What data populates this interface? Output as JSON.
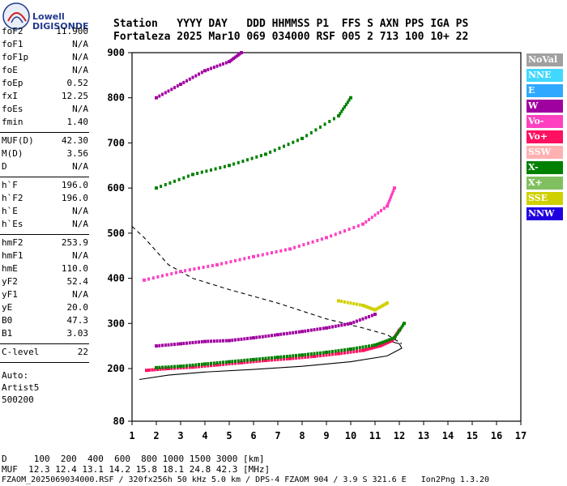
{
  "logo": {
    "line1": "Lowell",
    "line2": "DIGISONDE"
  },
  "header": {
    "row1": "Station   YYYY DAY   DDD HHMMSS P1  FFS S AXN PPS IGA PS",
    "row2": "Fortaleza 2025 Mar10 069 034000 RSF 005 2 713 100 10+ 22"
  },
  "params_group1": [
    {
      "k": "foF2",
      "v": "11.900"
    },
    {
      "k": "foF1",
      "v": "N/A"
    },
    {
      "k": "foF1p",
      "v": "N/A"
    },
    {
      "k": "foE",
      "v": "N/A"
    },
    {
      "k": "foEp",
      "v": "0.52"
    },
    {
      "k": "fxI",
      "v": "12.25"
    },
    {
      "k": "foEs",
      "v": "N/A"
    },
    {
      "k": "fmin",
      "v": "1.40"
    }
  ],
  "params_group2": [
    {
      "k": "MUF(D)",
      "v": "42.30"
    },
    {
      "k": "M(D)",
      "v": "3.56"
    },
    {
      "k": "D",
      "v": "N/A"
    }
  ],
  "params_group3": [
    {
      "k": "h`F",
      "v": "196.0"
    },
    {
      "k": "h`F2",
      "v": "196.0"
    },
    {
      "k": "h`E",
      "v": "N/A"
    },
    {
      "k": "h`Es",
      "v": "N/A"
    }
  ],
  "params_group4": [
    {
      "k": "hmF2",
      "v": "253.9"
    },
    {
      "k": "hmF1",
      "v": "N/A"
    },
    {
      "k": "hmE",
      "v": "110.0"
    },
    {
      "k": "yF2",
      "v": "52.4"
    },
    {
      "k": "yF1",
      "v": "N/A"
    },
    {
      "k": "yE",
      "v": "20.0"
    },
    {
      "k": "B0",
      "v": "47.3"
    },
    {
      "k": "B1",
      "v": "3.03"
    }
  ],
  "params_group5": [
    {
      "k": "C-level",
      "v": "22"
    }
  ],
  "auto": {
    "line1": "Auto:",
    "line2": "Artist5",
    "line3": "500200"
  },
  "legend": [
    {
      "label": "NoVal",
      "color": "#a0a0a0"
    },
    {
      "label": "NNE",
      "color": "#40d8ff"
    },
    {
      "label": "E",
      "color": "#2fa8ff"
    },
    {
      "label": "W",
      "color": "#a000a0"
    },
    {
      "label": "Vo-",
      "color": "#ff40c0"
    },
    {
      "label": "Vo+",
      "color": "#ff1060"
    },
    {
      "label": "SSW",
      "color": "#ffb0b0"
    },
    {
      "label": "X-",
      "color": "#008000"
    },
    {
      "label": "X+",
      "color": "#80c060"
    },
    {
      "label": "SSE",
      "color": "#d0d000"
    },
    {
      "label": "NNW",
      "color": "#2000e0"
    }
  ],
  "footer": {
    "row1": "D     100  200  400  600  800 1000 1500 3000 [km]",
    "row2": "MUF  12.3 12.4 13.1 14.2 15.8 18.1 24.8 42.3 [MHz]",
    "row3": "FZAOM_2025069034000.RSF / 320fx256h 50 kHz 5.0 km / DPS-4 FZAOM 904 / 3.9 S 321.6 E   Ion2Png 1.3.20"
  },
  "chart_data": {
    "type": "scatter",
    "title": "",
    "xlabel": "",
    "ylabel": "",
    "xlim": [
      1,
      17
    ],
    "ylim": [
      80,
      900
    ],
    "x_ticks": [
      "1",
      "2",
      "3",
      "4",
      "5",
      "6",
      "7",
      "8",
      "9",
      "10",
      "11",
      "12",
      "13",
      "14",
      "15",
      "16",
      "17"
    ],
    "y_ticks": [
      "80",
      "200",
      "300",
      "400",
      "500",
      "600",
      "700",
      "800",
      "900"
    ],
    "series": [
      {
        "name": "Vo+",
        "values": [
          [
            1.6,
            196
          ],
          [
            2.5,
            200
          ],
          [
            3.5,
            203
          ],
          [
            4.5,
            208
          ],
          [
            5.5,
            213
          ],
          [
            6.5,
            218
          ],
          [
            7.5,
            222
          ],
          [
            8.5,
            227
          ],
          [
            9.5,
            233
          ],
          [
            10.5,
            240
          ],
          [
            11.2,
            250
          ],
          [
            11.7,
            262
          ],
          [
            12.0,
            285
          ]
        ]
      },
      {
        "name": "X-",
        "values": [
          [
            2.0,
            202
          ],
          [
            3.0,
            205
          ],
          [
            4.0,
            210
          ],
          [
            5.0,
            215
          ],
          [
            6.0,
            220
          ],
          [
            7.0,
            225
          ],
          [
            8.0,
            230
          ],
          [
            9.0,
            236
          ],
          [
            10.0,
            243
          ],
          [
            11.0,
            252
          ],
          [
            11.8,
            268
          ],
          [
            12.2,
            300
          ]
        ]
      },
      {
        "name": "W",
        "values": [
          [
            2.0,
            250
          ],
          [
            3.0,
            255
          ],
          [
            4.0,
            260
          ],
          [
            5.0,
            262
          ],
          [
            6.0,
            268
          ],
          [
            7.0,
            275
          ],
          [
            8.0,
            282
          ],
          [
            9.0,
            290
          ],
          [
            10.0,
            300
          ],
          [
            11.0,
            320
          ]
        ]
      },
      {
        "name": "Vo-",
        "values": [
          [
            1.5,
            396
          ],
          [
            3.0,
            415
          ],
          [
            4.5,
            430
          ],
          [
            6.0,
            448
          ],
          [
            7.5,
            465
          ],
          [
            9.0,
            490
          ],
          [
            10.5,
            520
          ],
          [
            11.5,
            560
          ],
          [
            11.8,
            600
          ]
        ]
      },
      {
        "name": "X-",
        "values": [
          [
            2.0,
            600
          ],
          [
            3.5,
            630
          ],
          [
            5.0,
            650
          ],
          [
            6.5,
            675
          ],
          [
            8.0,
            710
          ],
          [
            9.5,
            760
          ],
          [
            10.0,
            800
          ]
        ]
      },
      {
        "name": "W",
        "values": [
          [
            2.0,
            800
          ],
          [
            3.0,
            830
          ],
          [
            4.0,
            860
          ],
          [
            5.0,
            880
          ],
          [
            5.5,
            900
          ]
        ]
      },
      {
        "name": "SSE",
        "values": [
          [
            9.5,
            350
          ],
          [
            10.5,
            340
          ],
          [
            11.0,
            330
          ],
          [
            11.5,
            345
          ]
        ]
      }
    ],
    "profile_curves": [
      {
        "name": "profile-dashed",
        "style": "dashed",
        "values": [
          [
            1.0,
            515
          ],
          [
            1.5,
            490
          ],
          [
            2.5,
            430
          ],
          [
            3.5,
            400
          ],
          [
            5.0,
            375
          ],
          [
            7.0,
            345
          ],
          [
            9.0,
            310
          ],
          [
            10.5,
            290
          ],
          [
            11.5,
            275
          ],
          [
            12.1,
            255
          ]
        ]
      },
      {
        "name": "profile-solid",
        "style": "solid",
        "values": [
          [
            1.3,
            175
          ],
          [
            2.5,
            185
          ],
          [
            4.0,
            192
          ],
          [
            6.0,
            198
          ],
          [
            8.0,
            205
          ],
          [
            10.0,
            215
          ],
          [
            11.5,
            228
          ],
          [
            12.1,
            245
          ],
          [
            12.0,
            255
          ],
          [
            11.5,
            262
          ]
        ]
      }
    ]
  }
}
